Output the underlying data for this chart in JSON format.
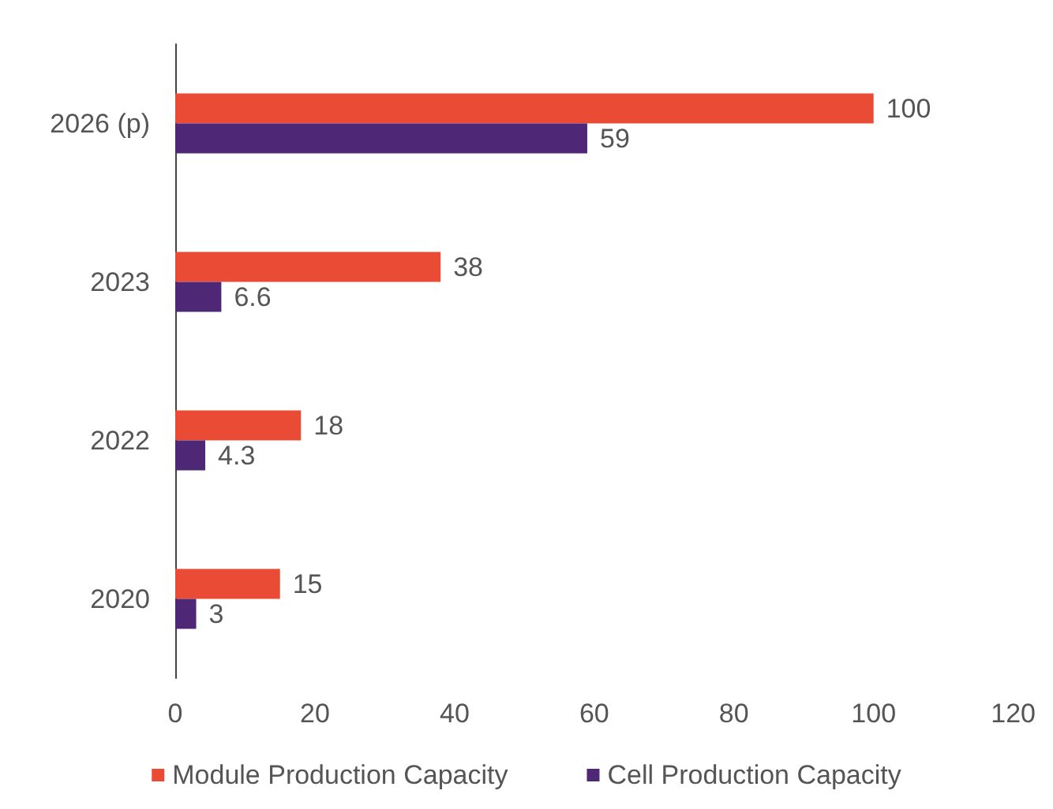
{
  "chart_data": {
    "type": "bar",
    "orientation": "horizontal",
    "categories": [
      "2026 (p)",
      "2023",
      "2022",
      "2020"
    ],
    "series": [
      {
        "name": "Module Production Capacity",
        "color": "#e94b35",
        "values": [
          100,
          38,
          18,
          15
        ]
      },
      {
        "name": "Cell Production Capacity",
        "color": "#4e2877",
        "values": [
          59,
          6.6,
          4.3,
          3
        ]
      }
    ],
    "xlim": [
      0,
      120
    ],
    "xticks": [
      0,
      20,
      40,
      60,
      80,
      100,
      120
    ],
    "data_labels": true,
    "grid": false,
    "legend": "bottom"
  }
}
